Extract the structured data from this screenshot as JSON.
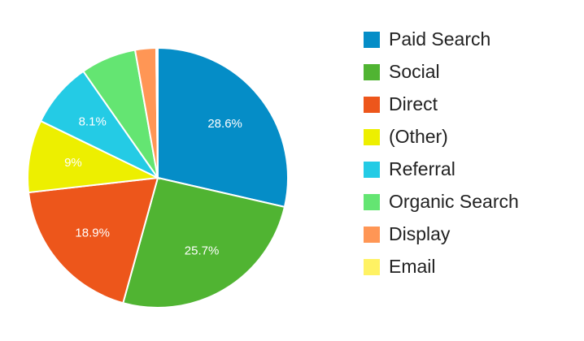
{
  "chart_data": {
    "type": "pie",
    "categories": [
      "Paid Search",
      "Social",
      "Direct",
      "(Other)",
      "Referral",
      "Organic Search",
      "Display",
      "Email"
    ],
    "values": [
      28.6,
      25.7,
      18.9,
      9,
      8.1,
      6.9,
      2.6,
      0.2
    ],
    "value_labels": [
      "28.6%",
      "25.7%",
      "18.9%",
      "9%",
      "8.1%",
      null,
      null,
      null
    ],
    "colors": [
      "#058dc7",
      "#50b432",
      "#ed561b",
      "#edef00",
      "#24cbe5",
      "#64e572",
      "#ff9655",
      "#fff263"
    ],
    "legend": "right"
  }
}
